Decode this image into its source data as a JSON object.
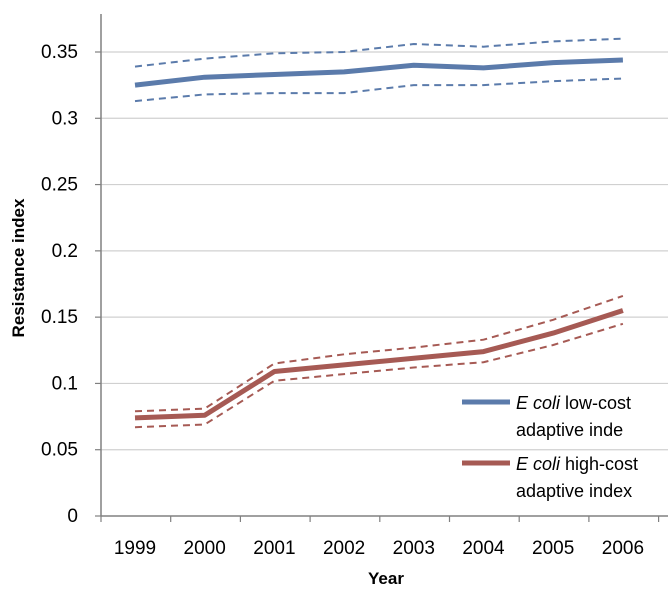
{
  "chart_data": {
    "type": "line",
    "title": "",
    "xlabel": "Year",
    "ylabel": "Resistance index",
    "categories": [
      "1999",
      "2000",
      "2001",
      "2002",
      "2003",
      "2004",
      "2005",
      "2006"
    ],
    "ylim": [
      0,
      0.35
    ],
    "yticks": [
      0,
      0.05,
      0.1,
      0.15,
      0.2,
      0.25,
      0.3,
      0.35
    ],
    "ytick_labels": [
      "0",
      "0.05",
      "0.1",
      "0.15",
      "0.2",
      "0.25",
      "0.3",
      "0.35"
    ],
    "grid": true,
    "legend_position": "bottom-right",
    "series": [
      {
        "name_italic": "E coli",
        "name_rest": " low-cost adaptive inde",
        "color": "#5b7bab",
        "values": [
          0.325,
          0.331,
          0.333,
          0.335,
          0.34,
          0.338,
          0.342,
          0.344
        ],
        "upper": [
          0.339,
          0.345,
          0.349,
          0.35,
          0.356,
          0.354,
          0.358,
          0.36
        ],
        "lower": [
          0.313,
          0.318,
          0.319,
          0.319,
          0.325,
          0.325,
          0.328,
          0.33
        ]
      },
      {
        "name_italic": "E coli",
        "name_rest": " high-cost adaptive index",
        "color": "#a65a54",
        "values": [
          0.074,
          0.076,
          0.109,
          0.114,
          0.119,
          0.124,
          0.138,
          0.155
        ],
        "upper": [
          0.079,
          0.081,
          0.115,
          0.122,
          0.127,
          0.133,
          0.148,
          0.166
        ],
        "lower": [
          0.067,
          0.069,
          0.102,
          0.107,
          0.112,
          0.116,
          0.129,
          0.145
        ]
      }
    ]
  }
}
